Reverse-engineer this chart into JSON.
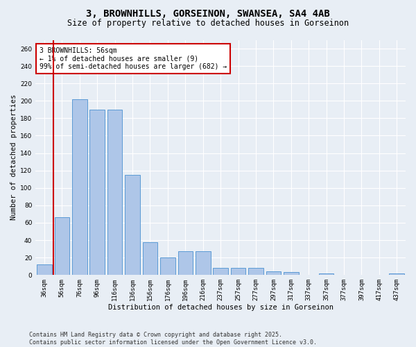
{
  "title": "3, BROWNHILLS, GORSEINON, SWANSEA, SA4 4AB",
  "subtitle": "Size of property relative to detached houses in Gorseinon",
  "xlabel": "Distribution of detached houses by size in Gorseinon",
  "ylabel": "Number of detached properties",
  "footer": "Contains HM Land Registry data © Crown copyright and database right 2025.\nContains public sector information licensed under the Open Government Licence v3.0.",
  "categories": [
    "36sqm",
    "56sqm",
    "76sqm",
    "96sqm",
    "116sqm",
    "136sqm",
    "156sqm",
    "176sqm",
    "196sqm",
    "216sqm",
    "237sqm",
    "257sqm",
    "277sqm",
    "297sqm",
    "317sqm",
    "337sqm",
    "357sqm",
    "377sqm",
    "397sqm",
    "417sqm",
    "437sqm"
  ],
  "values": [
    12,
    66,
    202,
    190,
    190,
    115,
    38,
    20,
    27,
    27,
    8,
    8,
    8,
    4,
    3,
    0,
    2,
    0,
    0,
    0,
    2
  ],
  "bar_color": "#aec6e8",
  "bar_edge_color": "#5b9bd5",
  "highlight_bar_index": 1,
  "highlight_color": "#cc0000",
  "annotation_line1": "3 BROWNHILLS: 56sqm",
  "annotation_line2": "← 1% of detached houses are smaller (9)",
  "annotation_line3": "99% of semi-detached houses are larger (682) →",
  "ylim": [
    0,
    270
  ],
  "yticks": [
    0,
    20,
    40,
    60,
    80,
    100,
    120,
    140,
    160,
    180,
    200,
    220,
    240,
    260
  ],
  "bg_color": "#e8eef5",
  "plot_bg_color": "#e8eef5",
  "grid_color": "#ffffff",
  "title_fontsize": 10,
  "subtitle_fontsize": 8.5,
  "axis_label_fontsize": 7.5,
  "tick_fontsize": 6.5,
  "footer_fontsize": 6.0,
  "annotation_fontsize": 7.0
}
